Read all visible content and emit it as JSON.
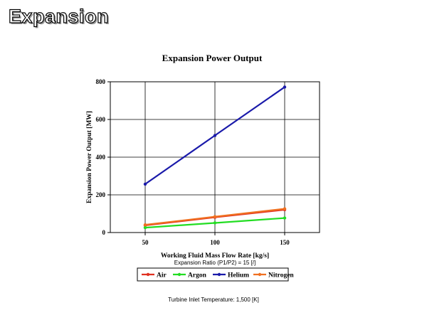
{
  "slide": {
    "title": "Expansion",
    "footnote": "Turbine Inlet Temperature:  1,500 [K]"
  },
  "chart_data": {
    "type": "line",
    "title": "Expansion Power Output",
    "xlabel": "Working Fluid Mass Flow Rate [kg/s]",
    "xsublabel": "Expansion Ratio (P1/P2) = 15 [/]",
    "ylabel": "Expansion Power Output [MW]",
    "x": [
      50,
      100,
      150
    ],
    "xlim": [
      25,
      175
    ],
    "ylim": [
      0,
      800
    ],
    "xticks": [
      50,
      100,
      150
    ],
    "yticks": [
      0,
      200,
      400,
      600,
      800
    ],
    "grid": true,
    "legend_position": "bottom",
    "series": [
      {
        "name": "Air",
        "color": "#e03020",
        "values": [
          38,
          81,
          121
        ]
      },
      {
        "name": "Argon",
        "color": "#22dd22",
        "values": [
          26,
          51,
          77
        ]
      },
      {
        "name": "Helium",
        "color": "#1a1aaa",
        "values": [
          257,
          515,
          772
        ]
      },
      {
        "name": "Nitrogen",
        "color": "#f07020",
        "values": [
          41,
          84,
          126
        ]
      }
    ]
  }
}
